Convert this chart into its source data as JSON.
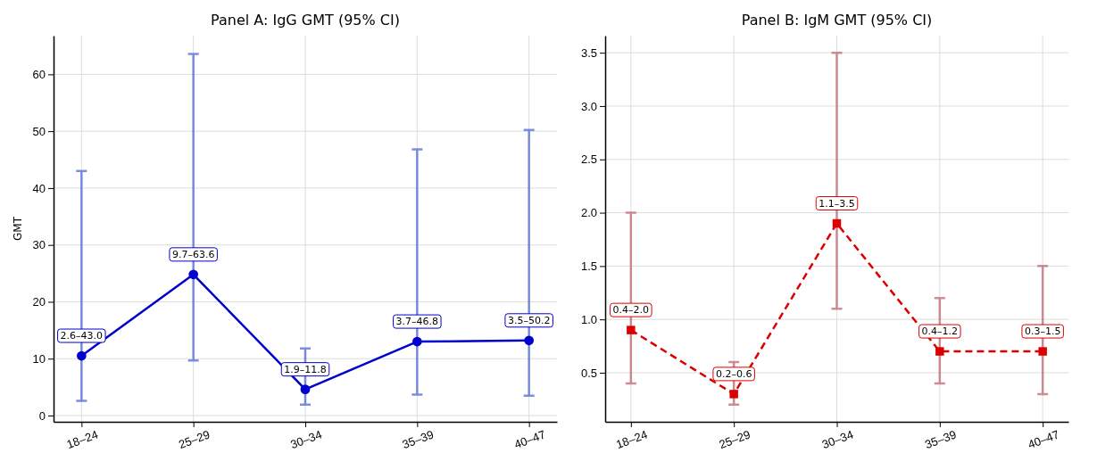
{
  "chart_data": [
    {
      "type": "line",
      "title": "Panel A: IgG GMT (95% CI)",
      "ylabel": "GMT",
      "categories": [
        "18–24",
        "25–29",
        "30–34",
        "35–39",
        "40–47"
      ],
      "series": [
        {
          "color": "#0000cc",
          "values": [
            10.5,
            24.8,
            4.6,
            13.0,
            13.2
          ],
          "errors": [
            [
              2.6,
              43.0
            ],
            [
              9.7,
              63.6
            ],
            [
              1.9,
              11.8
            ],
            [
              3.7,
              46.8
            ],
            [
              3.5,
              50.2
            ]
          ]
        }
      ],
      "ylim": [
        -1.1,
        66.8
      ],
      "yticks": [
        0,
        10,
        20,
        30,
        40,
        50,
        60
      ],
      "grid": true,
      "marker": "circle",
      "line_style": "solid",
      "annotations": [
        {
          "text": "2.6–43.0",
          "x": "18–24",
          "y": 10.5
        },
        {
          "text": "9.7–63.6",
          "x": "25–29",
          "y": 24.8
        },
        {
          "text": "1.9–11.8",
          "x": "30–34",
          "y": 4.6
        },
        {
          "text": "3.7–46.8",
          "x": "35–39",
          "y": 13.0
        },
        {
          "text": "3.5–50.2",
          "x": "40–47",
          "y": 13.2
        }
      ]
    },
    {
      "type": "line",
      "title": "Panel B: IgM GMT (95% CI)",
      "categories": [
        "18–24",
        "25–29",
        "30–34",
        "35–39",
        "40–47"
      ],
      "series": [
        {
          "color": "#dd0000",
          "values": [
            0.9,
            0.3,
            1.9,
            0.7,
            0.7
          ],
          "errors": [
            [
              0.4,
              2.0
            ],
            [
              0.2,
              0.6
            ],
            [
              1.1,
              3.5
            ],
            [
              0.4,
              1.2
            ],
            [
              0.3,
              1.5
            ]
          ]
        }
      ],
      "ylim": [
        0.04,
        3.66
      ],
      "yticks": [
        0.5,
        {
          "value": 1,
          "label": "1.0"
        },
        1.5,
        {
          "value": 2,
          "label": "2.0"
        },
        2.5,
        {
          "value": 3,
          "label": "3.0"
        },
        3.5
      ],
      "grid": true,
      "marker": "square",
      "line_style": "dashed",
      "annotations": [
        {
          "text": "0.4–2.0",
          "x": "18–24",
          "y": 0.9
        },
        {
          "text": "0.2–0.6",
          "x": "25–29",
          "y": 0.3
        },
        {
          "text": "1.1–3.5",
          "x": "30–34",
          "y": 1.9
        },
        {
          "text": "0.4–1.2",
          "x": "35–39",
          "y": 0.7
        },
        {
          "text": "0.3–1.5",
          "x": "40–47",
          "y": 0.7
        }
      ]
    }
  ]
}
